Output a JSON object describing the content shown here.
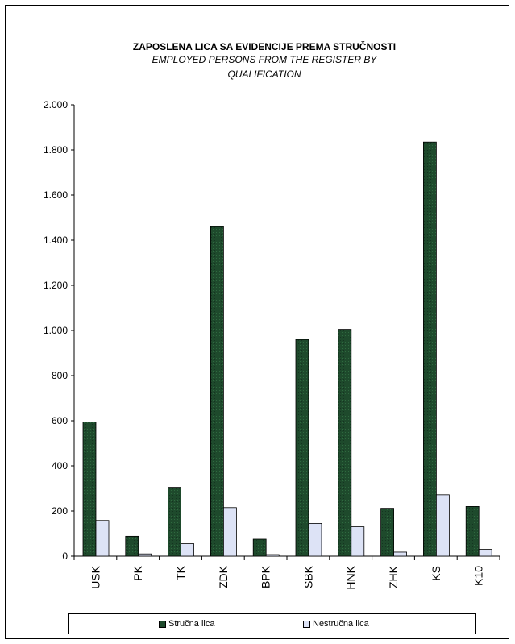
{
  "chart_data": {
    "type": "bar",
    "title": "ZAPOSLENA LICA SA EVIDENCIJE PREMA STRUČNOSTI",
    "subtitle_lines": [
      "EMPLOYED PERSONS FROM THE REGISTER BY",
      "QUALIFICATION"
    ],
    "categories": [
      "USK",
      "PK",
      "TK",
      "ZDK",
      "BPK",
      "SBK",
      "HNK",
      "ZHK",
      "KS",
      "K10"
    ],
    "series": [
      {
        "name": "Stručna lica",
        "values": [
          595,
          88,
          305,
          1460,
          75,
          960,
          1005,
          212,
          1835,
          220
        ],
        "color": "#1e4a2c"
      },
      {
        "name": "Nestručna lica",
        "values": [
          158,
          10,
          55,
          215,
          7,
          145,
          130,
          18,
          272,
          30
        ],
        "color": "#dde3f6"
      }
    ],
    "ylim": [
      0,
      2000
    ],
    "yticks": [
      0,
      200,
      400,
      600,
      800,
      1000,
      1200,
      1400,
      1600,
      1800,
      2000
    ],
    "ytick_labels": [
      "0",
      "200",
      "400",
      "600",
      "800",
      "1.000",
      "1.200",
      "1.400",
      "1.600",
      "1.800",
      "2.000"
    ],
    "legend_position": "bottom",
    "grid": false
  }
}
